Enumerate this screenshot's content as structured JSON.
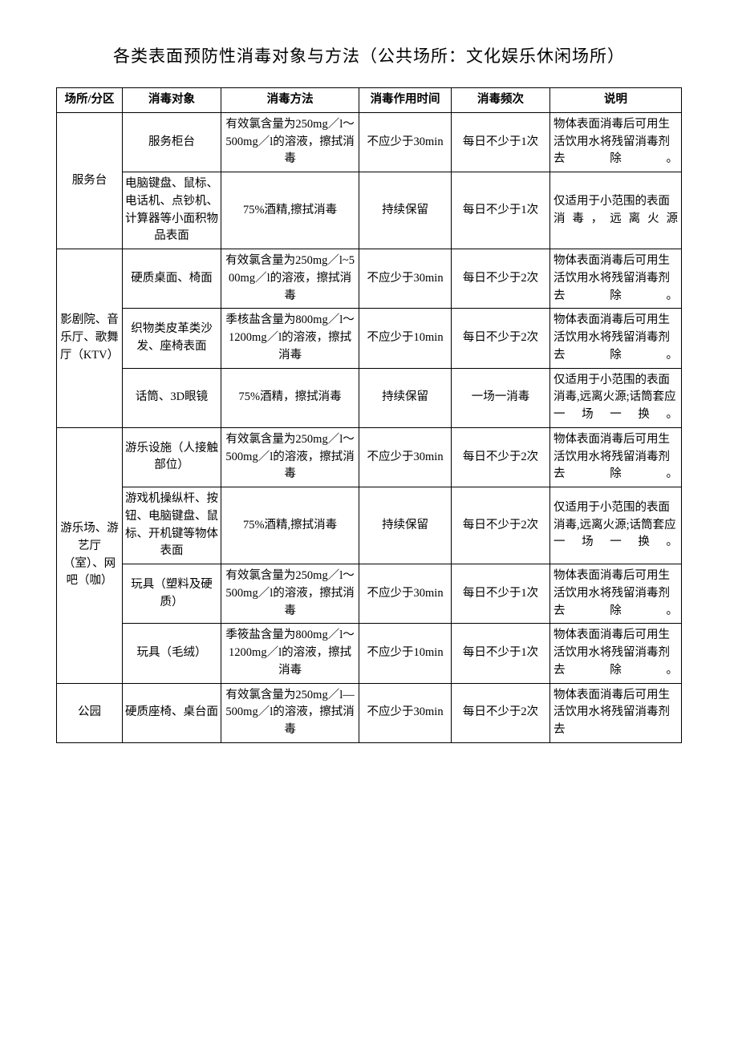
{
  "title": "各类表面预防性消毒对象与方法（公共场所：文化娱乐休闲场所）",
  "headers": {
    "col1": "场所/分区",
    "col2": "消毒对象",
    "col3": "消毒方法",
    "col4": "消毒作用时间",
    "col5": "消毒频次",
    "col6": "说明"
  },
  "groups": [
    {
      "place": "服务台",
      "rows": [
        {
          "object": "服务柜台",
          "method": "有效氯含量为250mg／l～500mg／l的溶液，擦拭消毒",
          "time": "不应少于30min",
          "freq": "每日不少于1次",
          "note": "物体表面消毒后可用生活饮用水将残留消毒剂去除。"
        },
        {
          "object": "电脑键盘、鼠标、电话机、点钞机、计算器等小面积物品表面",
          "method": "75%酒精,擦拭消毒",
          "time": "持续保留",
          "freq": "每日不少于1次",
          "note": "仅适用于小范围的表面消毒，远离火源"
        }
      ]
    },
    {
      "place": "影剧院、音乐厅、歌舞厅（KTV）",
      "rows": [
        {
          "object": "硬质桌面、椅面",
          "method": "有效氯含量为250mg／l~500mg／l的溶液，擦拭消毒",
          "time": "不应少于30min",
          "freq": "每日不少于2次",
          "note": "物体表面消毒后可用生活饮用水将残留消毒剂去除。"
        },
        {
          "object": "织物类皮革类沙发、座椅表面",
          "method": "季核盐含量为800mg／l～1200mg／l的溶液，擦拭消毒",
          "time": "不应少于10min",
          "freq": "每日不少于2次",
          "note": "物体表面消毒后可用生活饮用水将残留消毒剂去除。"
        },
        {
          "object": "话筒、3D眼镜",
          "method": "75%酒精，擦拭消毒",
          "time": "持续保留",
          "freq": "一场一消毒",
          "note": "仅适用于小范围的表面消毒,远离火源;话筒套应一场一换。"
        }
      ]
    },
    {
      "place": "游乐场、游艺厅（室）、网吧（咖）",
      "rows": [
        {
          "object": "游乐设施（人接触部位）",
          "method": "有效氯含量为250mg／l～500mg／l的溶液，擦拭消毒",
          "time": "不应少于30min",
          "freq": "每日不少于2次",
          "note": "物体表面消毒后可用生活饮用水将残留消毒剂去除。"
        },
        {
          "object": "游戏机操纵杆、按钮、电脑键盘、鼠标、开机键等物体表面",
          "method": "75%酒精,擦拭消毒",
          "time": "持续保留",
          "freq": "每日不少于2次",
          "note": "仅适用于小范围的表面消毒,远离火源;话筒套应一场一换。"
        },
        {
          "object": "玩具（塑料及硬质）",
          "method": "有效氯含量为250mg／l～500mg／l的溶液，擦拭消毒",
          "time": "不应少于30min",
          "freq": "每日不少于1次",
          "note": "物体表面消毒后可用生活饮用水将残留消毒剂去除。"
        },
        {
          "object": "玩具（毛绒）",
          "method": "季筱盐含量为800mg／l～1200mg／l的溶液，擦拭消毒",
          "time": "不应少于10min",
          "freq": "每日不少于1次",
          "note": "物体表面消毒后可用生活饮用水将残留消毒剂去除。"
        }
      ]
    },
    {
      "place": "公园",
      "rows": [
        {
          "object": "硬质座椅、桌台面",
          "method": "有效氯含量为250mg／l—500mg／l的溶液，擦拭消毒",
          "time": "不应少于30min",
          "freq": "每日不少于2次",
          "note": "物体表面消毒后可用生活饮用水将残留消毒剂去"
        }
      ]
    }
  ],
  "styles": {
    "background_color": "#ffffff",
    "text_color": "#000000",
    "border_color": "#000000",
    "title_fontsize": 21,
    "cell_fontsize": 14.5,
    "font_family": "SimSun"
  }
}
